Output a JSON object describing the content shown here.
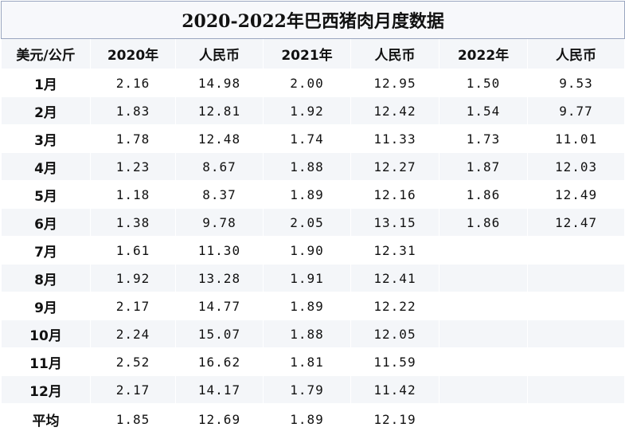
{
  "title": "2020-2022年巴西猪肉月度数据",
  "headers": [
    "美元/公斤",
    "2020年",
    "人民币",
    "2021年",
    "人民币",
    "2022年",
    "人民币"
  ],
  "rows": [
    {
      "month": "1月",
      "v2020": "2.16",
      "rmb2020": "14.98",
      "v2021": "2.00",
      "rmb2021": "12.95",
      "v2022": "1.50",
      "rmb2022": "9.53"
    },
    {
      "month": "2月",
      "v2020": "1.83",
      "rmb2020": "12.81",
      "v2021": "1.92",
      "rmb2021": "12.42",
      "v2022": "1.54",
      "rmb2022": "9.77"
    },
    {
      "month": "3月",
      "v2020": "1.78",
      "rmb2020": "12.48",
      "v2021": "1.74",
      "rmb2021": "11.33",
      "v2022": "1.73",
      "rmb2022": "11.01"
    },
    {
      "month": "4月",
      "v2020": "1.23",
      "rmb2020": "8.67",
      "v2021": "1.88",
      "rmb2021": "12.27",
      "v2022": "1.87",
      "rmb2022": "12.03"
    },
    {
      "month": "5月",
      "v2020": "1.18",
      "rmb2020": "8.37",
      "v2021": "1.89",
      "rmb2021": "12.16",
      "v2022": "1.86",
      "rmb2022": "12.49"
    },
    {
      "month": "6月",
      "v2020": "1.38",
      "rmb2020": "9.78",
      "v2021": "2.05",
      "rmb2021": "13.15",
      "v2022": "1.86",
      "rmb2022": "12.47"
    },
    {
      "month": "7月",
      "v2020": "1.61",
      "rmb2020": "11.30",
      "v2021": "1.90",
      "rmb2021": "12.31",
      "v2022": "",
      "rmb2022": ""
    },
    {
      "month": "8月",
      "v2020": "1.92",
      "rmb2020": "13.28",
      "v2021": "1.91",
      "rmb2021": "12.41",
      "v2022": "",
      "rmb2022": ""
    },
    {
      "month": "9月",
      "v2020": "2.17",
      "rmb2020": "14.77",
      "v2021": "1.89",
      "rmb2021": "12.22",
      "v2022": "",
      "rmb2022": ""
    },
    {
      "month": "10月",
      "v2020": "2.24",
      "rmb2020": "15.07",
      "v2021": "1.88",
      "rmb2021": "12.05",
      "v2022": "",
      "rmb2022": ""
    },
    {
      "month": "11月",
      "v2020": "2.52",
      "rmb2020": "16.62",
      "v2021": "1.81",
      "rmb2021": "11.59",
      "v2022": "",
      "rmb2022": ""
    },
    {
      "month": "12月",
      "v2020": "2.17",
      "rmb2020": "14.17",
      "v2021": "1.79",
      "rmb2021": "11.42",
      "v2022": "",
      "rmb2022": ""
    },
    {
      "month": "平均",
      "v2020": "1.85",
      "rmb2020": "12.69",
      "v2021": "1.89",
      "rmb2021": "12.19",
      "v2022": "",
      "rmb2022": ""
    }
  ],
  "colors": {
    "band": "#f4f6f9",
    "plain": "#ffffff",
    "title_border": "#9aa6bf"
  }
}
